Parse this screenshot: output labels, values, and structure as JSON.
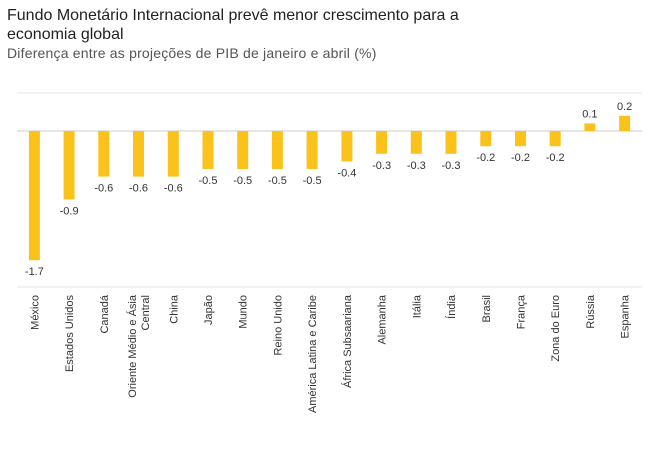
{
  "title": "Fundo Monetário Internacional prevê menor crescimento para a economia global",
  "subtitle": "Diferença entre as projeções de PIB de janeiro e abril (%)",
  "colors": {
    "bar": "#FBC21B",
    "grid": "#e5e5e5",
    "zero": "#cccccc"
  },
  "chart_data": {
    "type": "bar",
    "title": "Fundo Monetário Internacional prevê menor crescimento para a economia global",
    "subtitle": "Diferença entre as projeções de PIB de janeiro e abril (%)",
    "xlabel": "",
    "ylabel": "",
    "ylim": [
      -1.85,
      0.3
    ],
    "grid": true,
    "categories": [
      "México",
      "Estados Unidos",
      "Canadá",
      "Oriente Médio e Ásia Central",
      "China",
      "Japão",
      "Mundo",
      "Reino Unido",
      "América Latina e Caribe",
      "África Subsaariana",
      "Alemanha",
      "Itália",
      "Índia",
      "Brasil",
      "França",
      "Zona do Euro",
      "Rússia",
      "Espanha"
    ],
    "values": [
      -1.7,
      -0.9,
      -0.6,
      -0.6,
      -0.6,
      -0.5,
      -0.5,
      -0.5,
      -0.5,
      -0.4,
      -0.3,
      -0.3,
      -0.3,
      -0.2,
      -0.2,
      -0.2,
      0.1,
      0.2
    ],
    "data_labels": [
      "-1.7",
      "-0.9",
      "-0.6",
      "-0.6",
      "-0.6",
      "-0.5",
      "-0.5",
      "-0.5",
      "-0.5",
      "-0.4",
      "-0.3",
      "-0.3",
      "-0.3",
      "-0.2",
      "-0.2",
      "-0.2",
      "0.1",
      "0.2"
    ],
    "category_label_lines": [
      [
        "México"
      ],
      [
        "Estados Unidos"
      ],
      [
        "Canadá"
      ],
      [
        "Oriente Médio e Ásia",
        "Central"
      ],
      [
        "China"
      ],
      [
        "Japão"
      ],
      [
        "Mundo"
      ],
      [
        "Reino Unido"
      ],
      [
        "América Latina e Caribe"
      ],
      [
        "África Subsaariana"
      ],
      [
        "Alemanha"
      ],
      [
        "Itália"
      ],
      [
        "Índia"
      ],
      [
        "Brasil"
      ],
      [
        "França"
      ],
      [
        "Zona do Euro"
      ],
      [
        "Rússia"
      ],
      [
        "Espanha"
      ]
    ]
  }
}
